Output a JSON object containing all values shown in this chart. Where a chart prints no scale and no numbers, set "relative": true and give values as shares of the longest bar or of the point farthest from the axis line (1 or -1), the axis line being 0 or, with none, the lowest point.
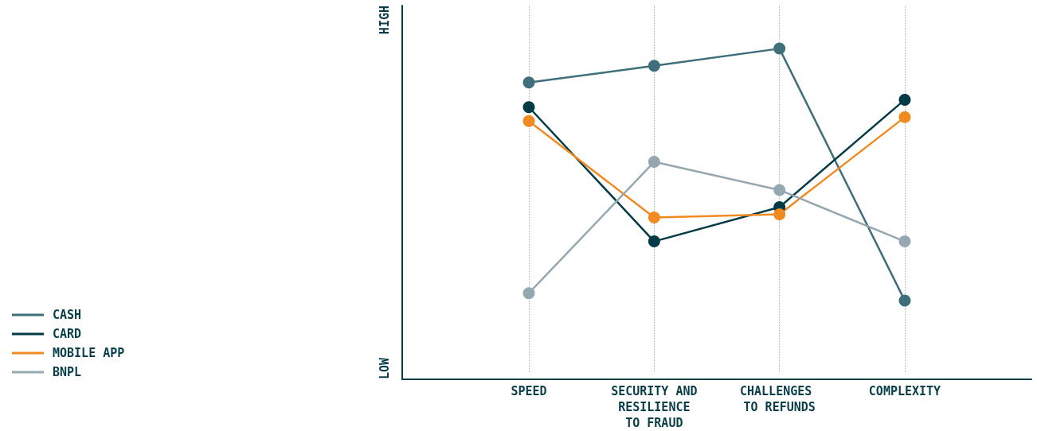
{
  "chart_data": {
    "type": "line",
    "categories": [
      "SPEED",
      "SECURITY AND RESILIENCE TO FRAUD",
      "CHALLENGES TO REFUNDS",
      "COMPLEXITY"
    ],
    "series": [
      {
        "name": "CASH",
        "color": "#3e6f7b",
        "values": [
          0.895,
          0.947,
          1,
          0.221
        ]
      },
      {
        "name": "CARD",
        "color": "#003b46",
        "values": [
          0.819,
          0.404,
          0.51,
          0.842
        ]
      },
      {
        "name": "MOBILE APP",
        "color": "#f28a22",
        "values": [
          0.776,
          0.478,
          0.488,
          0.788
        ]
      },
      {
        "name": "BNPL",
        "color": "#95a8b0",
        "values": [
          0.244,
          0.65,
          0.563,
          0.404
        ]
      }
    ],
    "relative": true,
    "annotations": [
      "HIGH",
      "LOW"
    ],
    "grid": "x",
    "legend": "bottom left",
    "marker": "circle",
    "line_style": "solid"
  }
}
